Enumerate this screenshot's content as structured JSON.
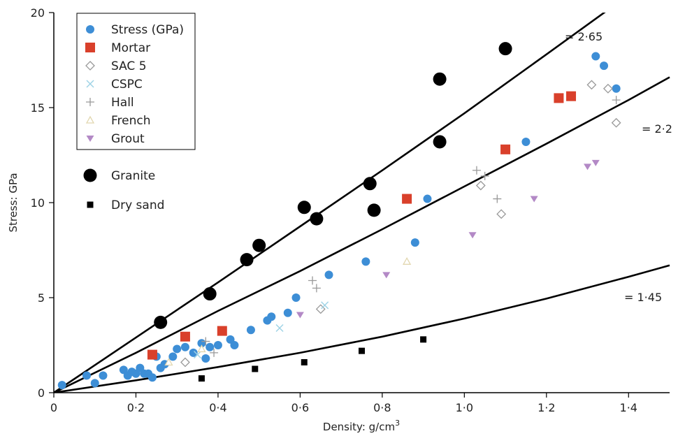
{
  "chart_data": {
    "type": "scatter",
    "xlabel": "Density: g/cm",
    "xlabel_superscript": "3",
    "ylabel": "Stress: GPa",
    "xlim": [
      0,
      1.5
    ],
    "ylim": [
      0,
      20
    ],
    "x_ticks": [
      {
        "value": 0,
        "label": "0"
      },
      {
        "value": 0.2,
        "label": "0·2"
      },
      {
        "value": 0.4,
        "label": "0·4"
      },
      {
        "value": 0.6,
        "label": "0·6"
      },
      {
        "value": 0.8,
        "label": "0·8"
      },
      {
        "value": 1.0,
        "label": "1·0"
      },
      {
        "value": 1.2,
        "label": "1·2"
      },
      {
        "value": 1.4,
        "label": "1·4"
      }
    ],
    "y_ticks": [
      {
        "value": 0,
        "label": "0"
      },
      {
        "value": 5,
        "label": "5"
      },
      {
        "value": 10,
        "label": "10"
      },
      {
        "value": 15,
        "label": "15"
      },
      {
        "value": 20,
        "label": "20"
      }
    ],
    "grid": false,
    "legend_placement": "top-left",
    "series": [
      {
        "name": "Stress (GPa)",
        "marker": "circle",
        "color": "#3d8ed6",
        "x": [
          0.02,
          0.08,
          0.1,
          0.12,
          0.17,
          0.18,
          0.19,
          0.2,
          0.21,
          0.22,
          0.23,
          0.24,
          0.25,
          0.26,
          0.27,
          0.29,
          0.3,
          0.32,
          0.34,
          0.36,
          0.37,
          0.38,
          0.4,
          0.43,
          0.44,
          0.48,
          0.52,
          0.53,
          0.57,
          0.59,
          0.67,
          0.76,
          0.88,
          0.91,
          1.15,
          1.32,
          1.34,
          1.37
        ],
        "y": [
          0.4,
          0.9,
          0.5,
          0.9,
          1.2,
          0.9,
          1.1,
          1.0,
          1.3,
          1.0,
          1.0,
          0.8,
          1.9,
          1.3,
          1.5,
          1.9,
          2.3,
          2.4,
          2.1,
          2.6,
          1.8,
          2.4,
          2.5,
          2.8,
          2.5,
          3.3,
          3.8,
          4.0,
          4.2,
          5.0,
          6.2,
          6.9,
          7.9,
          10.2,
          13.2,
          17.7,
          17.2,
          16.0
        ]
      },
      {
        "name": "Mortar",
        "marker": "square",
        "color": "#d9402b",
        "x": [
          0.24,
          0.32,
          0.41,
          0.86,
          1.1,
          1.23,
          1.26
        ],
        "y": [
          2.0,
          2.95,
          3.25,
          10.2,
          12.8,
          15.5,
          15.6
        ]
      },
      {
        "name": "SAC 5",
        "marker": "diamond",
        "color": "#999999",
        "x": [
          0.32,
          0.65,
          1.04,
          1.09,
          1.31,
          1.35,
          1.37
        ],
        "y": [
          1.6,
          4.4,
          10.9,
          9.4,
          16.2,
          16.0,
          14.2
        ]
      },
      {
        "name": "CSPC",
        "marker": "x",
        "color": "#9fd3e6",
        "x": [
          0.35,
          0.55,
          0.66
        ],
        "y": [
          2.0,
          3.4,
          4.6
        ]
      },
      {
        "name": "Hall",
        "marker": "plus",
        "color": "#999999",
        "x": [
          0.37,
          0.39,
          0.63,
          0.64,
          1.03,
          1.05,
          1.08,
          1.37
        ],
        "y": [
          2.7,
          2.1,
          5.9,
          5.5,
          11.7,
          11.4,
          10.2,
          15.4
        ]
      },
      {
        "name": "French",
        "marker": "triangle-up",
        "color": "#e2d7b0",
        "x": [
          0.28,
          0.36,
          0.86
        ],
        "y": [
          1.6,
          2.3,
          6.9
        ]
      },
      {
        "name": "Grout",
        "marker": "triangle-down",
        "color": "#b389c6",
        "x": [
          0.6,
          0.81,
          1.02,
          1.17,
          1.3,
          1.32
        ],
        "y": [
          4.1,
          6.2,
          8.3,
          10.2,
          11.9,
          12.1
        ]
      },
      {
        "name": "Granite",
        "marker": "big-circle",
        "color": "#000000",
        "x": [
          0.26,
          0.38,
          0.47,
          0.5,
          0.61,
          0.64,
          0.77,
          0.78,
          0.94,
          0.94,
          1.1
        ],
        "y": [
          3.7,
          5.2,
          7.0,
          7.75,
          9.75,
          9.15,
          11.0,
          9.6,
          16.5,
          13.2,
          18.1
        ]
      },
      {
        "name": "Dry sand",
        "marker": "small-square",
        "color": "#000000",
        "x": [
          0.36,
          0.49,
          0.61,
          0.75,
          0.9
        ],
        "y": [
          0.75,
          1.25,
          1.6,
          2.2,
          2.8
        ]
      }
    ],
    "fit_curves": [
      {
        "label": "= 2·65",
        "points": [
          [
            0,
            0
          ],
          [
            0.2,
            2.9
          ],
          [
            0.4,
            5.8
          ],
          [
            0.6,
            8.75
          ],
          [
            0.8,
            11.7
          ],
          [
            1.0,
            14.7
          ],
          [
            1.2,
            17.8
          ],
          [
            1.36,
            20.3
          ]
        ]
      },
      {
        "label": "= 2·2",
        "points": [
          [
            0,
            0
          ],
          [
            0.2,
            2.1
          ],
          [
            0.4,
            4.3
          ],
          [
            0.6,
            6.4
          ],
          [
            0.8,
            8.6
          ],
          [
            1.0,
            10.85
          ],
          [
            1.2,
            13.1
          ],
          [
            1.4,
            15.4
          ],
          [
            1.5,
            16.6
          ]
        ]
      },
      {
        "label": "= 1·45",
        "points": [
          [
            0,
            0
          ],
          [
            0.2,
            0.65
          ],
          [
            0.4,
            1.35
          ],
          [
            0.6,
            2.1
          ],
          [
            0.8,
            2.95
          ],
          [
            1.0,
            3.9
          ],
          [
            1.2,
            4.95
          ],
          [
            1.4,
            6.1
          ],
          [
            1.5,
            6.7
          ]
        ]
      }
    ]
  }
}
